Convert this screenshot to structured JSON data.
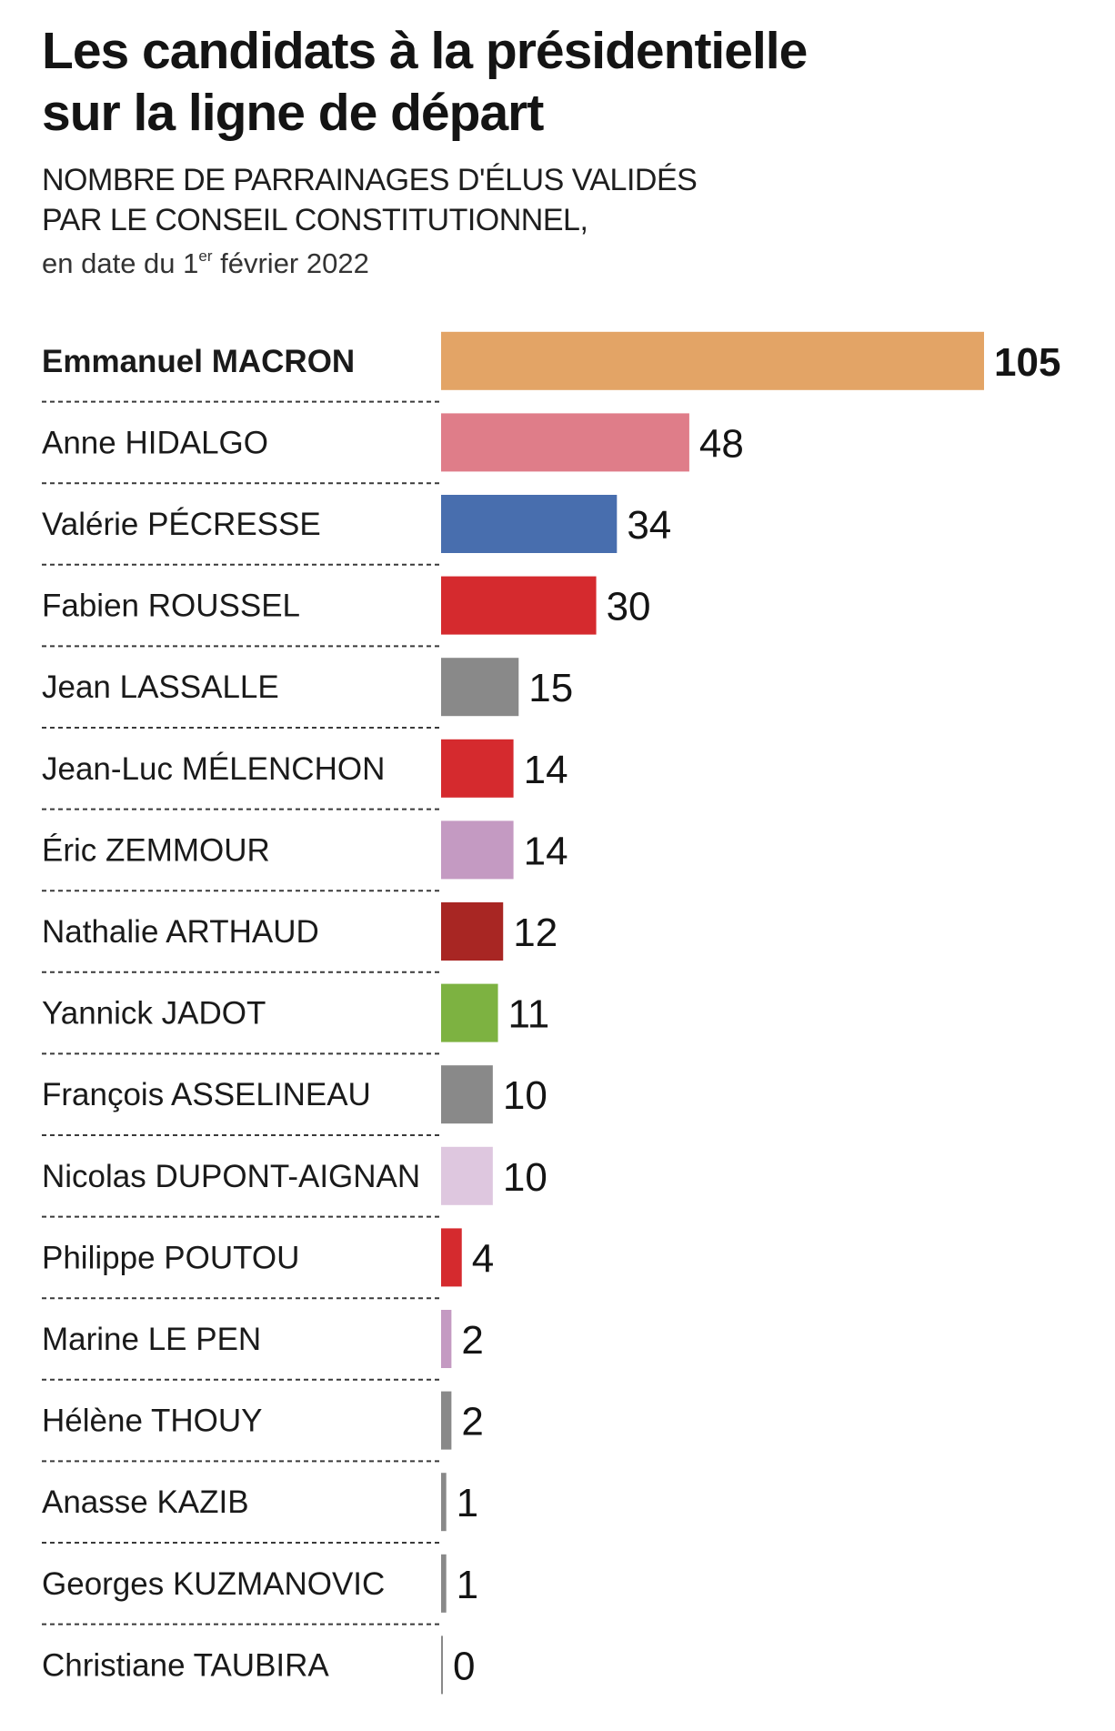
{
  "header": {
    "title_line1": "Les candidats à la présidentielle",
    "title_line2": "sur la ligne de départ",
    "subtitle_line1": "NOMBRE DE PARRAINAGES D'ÉLUS VALIDÉS",
    "subtitle_line2": "PAR LE CONSEIL CONSTITUTIONNEL,",
    "date_prefix": "en date du 1",
    "date_sup": "er",
    "date_suffix": " février 2022"
  },
  "chart_data": {
    "type": "bar",
    "orientation": "horizontal",
    "title": "Les candidats à la présidentielle sur la ligne de départ",
    "subtitle": "NOMBRE DE PARRAINAGES D'ÉLUS VALIDÉS PAR LE CONSEIL CONSTITUTIONNEL, en date du 1er février 2022",
    "categories": [
      "Emmanuel MACRON",
      "Anne HIDALGO",
      "Valérie PÉCRESSE",
      "Fabien ROUSSEL",
      "Jean LASSALLE",
      "Jean-Luc MÉLENCHON",
      "Éric ZEMMOUR",
      "Nathalie ARTHAUD",
      "Yannick JADOT",
      "François ASSELINEAU",
      "Nicolas DUPONT-AIGNAN",
      "Philippe POUTOU",
      "Marine LE PEN",
      "Hélène THOUY",
      "Anasse KAZIB",
      "Georges KUZMANOVIC",
      "Christiane TAUBIRA"
    ],
    "values": [
      105,
      48,
      34,
      30,
      15,
      14,
      14,
      12,
      11,
      10,
      10,
      4,
      2,
      2,
      1,
      1,
      0
    ],
    "colors": [
      "#E3A466",
      "#DF7D89",
      "#486EAE",
      "#D52A2E",
      "#898989",
      "#D52A2E",
      "#C49AC2",
      "#A82623",
      "#7DB241",
      "#898989",
      "#DEC7DF",
      "#D52A2E",
      "#C49AC2",
      "#898989",
      "#898989",
      "#898989",
      "#898989"
    ],
    "highlighted": [
      "Emmanuel MACRON"
    ],
    "xlim": [
      0,
      105
    ],
    "grid": false,
    "legend": "none"
  }
}
